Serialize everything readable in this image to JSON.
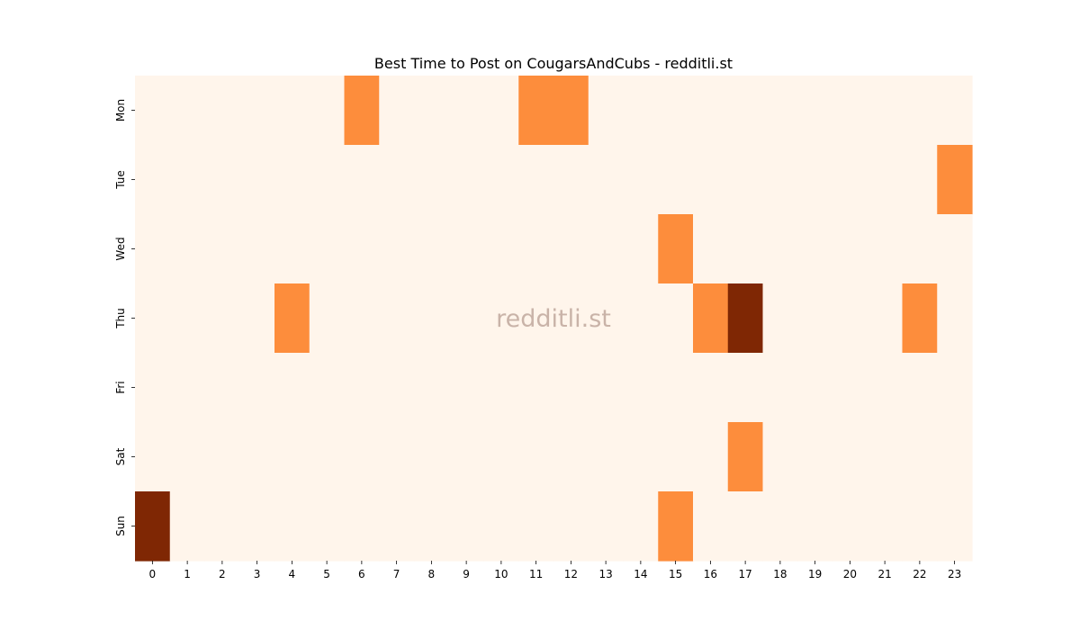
{
  "chart_data": {
    "type": "heatmap",
    "title": "Best Time to Post on CougarsAndCubs - redditli.st",
    "watermark": "redditli.st",
    "xlabel": "",
    "ylabel": "",
    "x_categories": [
      "0",
      "1",
      "2",
      "3",
      "4",
      "5",
      "6",
      "7",
      "8",
      "9",
      "10",
      "11",
      "12",
      "13",
      "14",
      "15",
      "16",
      "17",
      "18",
      "19",
      "20",
      "21",
      "22",
      "23"
    ],
    "y_categories": [
      "Mon",
      "Tue",
      "Wed",
      "Thu",
      "Fri",
      "Sat",
      "Sun"
    ],
    "values": [
      [
        0,
        0,
        0,
        0,
        0,
        0,
        1,
        0,
        0,
        0,
        0,
        1,
        1,
        0,
        0,
        0,
        0,
        0,
        0,
        0,
        0,
        0,
        0,
        0
      ],
      [
        0,
        0,
        0,
        0,
        0,
        0,
        0,
        0,
        0,
        0,
        0,
        0,
        0,
        0,
        0,
        0,
        0,
        0,
        0,
        0,
        0,
        0,
        0,
        1
      ],
      [
        0,
        0,
        0,
        0,
        0,
        0,
        0,
        0,
        0,
        0,
        0,
        0,
        0,
        0,
        0,
        1,
        0,
        0,
        0,
        0,
        0,
        0,
        0,
        0
      ],
      [
        0,
        0,
        0,
        0,
        1,
        0,
        0,
        0,
        0,
        0,
        0,
        0,
        0,
        0,
        0,
        0,
        1,
        2,
        0,
        0,
        0,
        0,
        1,
        0
      ],
      [
        0,
        0,
        0,
        0,
        0,
        0,
        0,
        0,
        0,
        0,
        0,
        0,
        0,
        0,
        0,
        0,
        0,
        0,
        0,
        0,
        0,
        0,
        0,
        0
      ],
      [
        0,
        0,
        0,
        0,
        0,
        0,
        0,
        0,
        0,
        0,
        0,
        0,
        0,
        0,
        0,
        0,
        0,
        1,
        0,
        0,
        0,
        0,
        0,
        0
      ],
      [
        2,
        0,
        0,
        0,
        0,
        0,
        0,
        0,
        0,
        0,
        0,
        0,
        0,
        0,
        0,
        1,
        0,
        0,
        0,
        0,
        0,
        0,
        0,
        0
      ]
    ],
    "colormap": [
      "#fff5eb",
      "#fd8d3c",
      "#7f2704"
    ],
    "colorbar": false,
    "grid": false
  }
}
